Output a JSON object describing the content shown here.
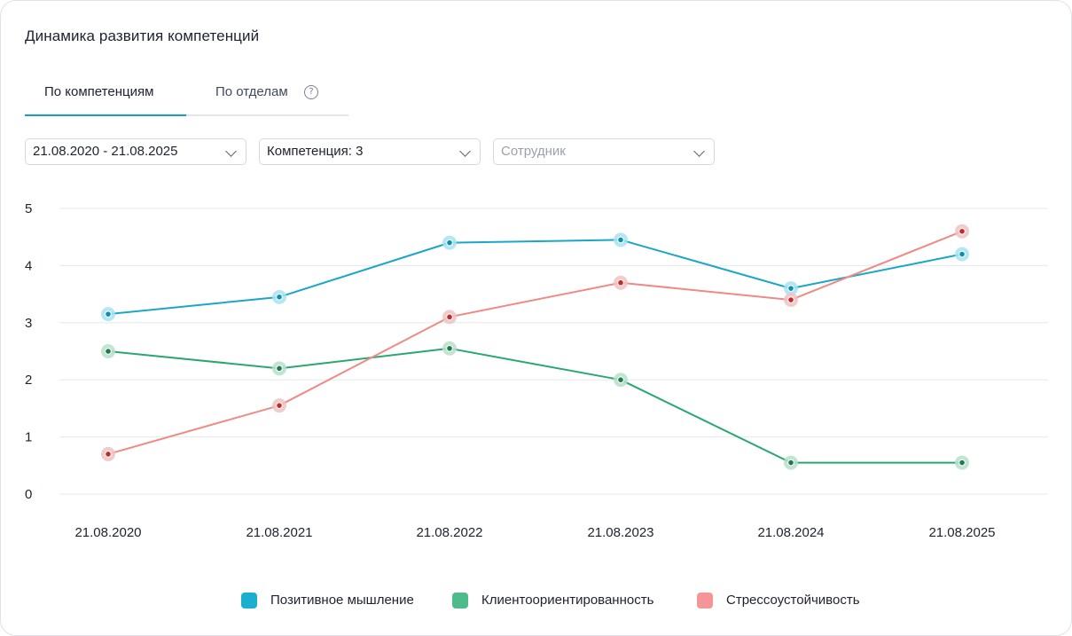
{
  "title": "Динамика развития компетенций",
  "tabs": [
    {
      "label": "По компетенциям",
      "active": true
    },
    {
      "label": "По отделам",
      "active": false
    }
  ],
  "help_icon": "question-circle-icon",
  "filters": {
    "period": "21.08.2020 - 21.08.2025",
    "competence": "Компетенция: 3",
    "employee_placeholder": "Сотрудник"
  },
  "colors": {
    "accent": "#169fc4",
    "positive": "#1aa6c9",
    "client": "#2aa870",
    "stress": "#f08a86"
  },
  "chart_data": {
    "type": "line",
    "x": [
      "21.08.2020",
      "21.08.2021",
      "21.08.2022",
      "21.08.2023",
      "21.08.2024",
      "21.08.2025"
    ],
    "ylim": [
      0,
      5
    ],
    "yticks": [
      "0",
      "1",
      "2",
      "3",
      "4",
      "5"
    ],
    "grid": true,
    "legend_position": "bottom",
    "series": [
      {
        "name": "Позитивное мышление",
        "color": "#1aa6c9",
        "dot": "#0e8fb2",
        "halo": "#a8e3f0",
        "legend_color": "#1aafd0",
        "values": [
          3.15,
          3.45,
          4.4,
          4.45,
          3.6,
          4.2
        ]
      },
      {
        "name": "Клиентоориентированность",
        "color": "#2aa870",
        "dot": "#1c7a4f",
        "halo": "#b9dfca",
        "legend_color": "#4dbb8a",
        "values": [
          2.5,
          2.2,
          2.55,
          2.0,
          0.55,
          0.55
        ]
      },
      {
        "name": "Стрессоустойчивость",
        "color": "#f08a86",
        "dot": "#c42a2a",
        "halo": "#eec3c3",
        "legend_color": "#f59595",
        "values": [
          0.7,
          1.55,
          3.1,
          3.7,
          3.4,
          4.6
        ]
      }
    ]
  }
}
